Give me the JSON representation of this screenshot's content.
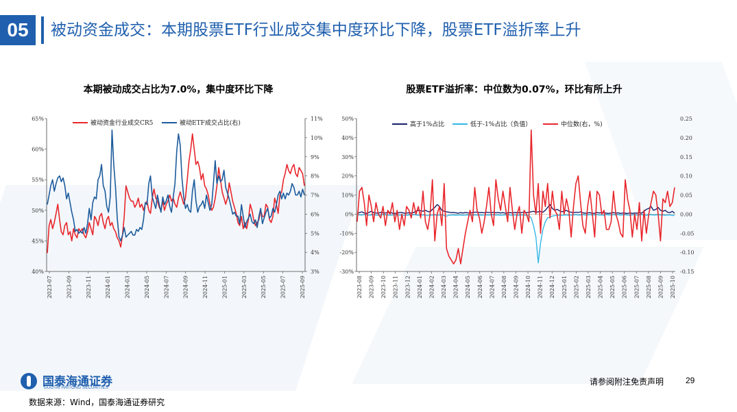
{
  "header": {
    "section_number": "05",
    "title": "被动资金成交：本期股票ETF行业成交集中度环比下降，股票ETF溢折率上升"
  },
  "colors": {
    "brand": "#1f5fae",
    "red": "#e8262b",
    "navy": "#15206b",
    "blue": "#1c5b9b",
    "cyan": "#33b7e6"
  },
  "chart1_title": "本期被动成交占比为7.0%，集中度环比下降",
  "chart2_title": "股票ETF溢折率：中位数为0.07%，环比有所上升",
  "chart_data": [
    {
      "type": "line",
      "title": "本期被动成交占比为7.0%，集中度环比下降",
      "x_ticks": [
        "2023-07",
        "2023-09",
        "2023-11",
        "2024-01",
        "2024-03",
        "2024-05",
        "2024-07",
        "2024-09",
        "2024-11",
        "2025-01",
        "2025-03",
        "2025-05",
        "2025-07",
        "2025-09"
      ],
      "ylim_left": [
        40,
        65
      ],
      "left_ticks": [
        "40%",
        "45%",
        "50%",
        "55%",
        "60%",
        "65%"
      ],
      "ylim_right": [
        3,
        11
      ],
      "right_ticks": [
        "3%",
        "4%",
        "5%",
        "6%",
        "7%",
        "8%",
        "9%",
        "10%",
        "11%"
      ],
      "series": [
        {
          "name": "被动资金行业成交CR5",
          "axis": "left",
          "color": "#e8262b",
          "values": [
            43.0,
            47.5,
            48.5,
            47.0,
            48.0,
            49.5,
            51.0,
            48.5,
            46.5,
            46.0,
            47.5,
            48.0,
            46.0,
            46.5,
            45.0,
            47.0,
            46.0,
            45.5,
            47.0,
            46.5,
            47.0,
            46.0,
            45.5,
            46.5,
            48.0,
            47.0,
            46.0,
            49.0,
            48.5,
            47.5,
            49.0,
            49.5,
            48.0,
            47.0,
            48.5,
            49.0,
            47.5,
            48.0,
            47.0,
            46.5,
            45.5,
            45.0,
            44.0,
            46.0,
            49.0,
            54.0,
            53.0,
            52.0,
            51.5,
            51.5,
            50.5,
            51.0,
            52.0,
            50.5,
            51.0,
            50.0,
            51.0,
            51.5,
            50.0,
            49.5,
            52.0,
            53.5,
            52.0,
            51.5,
            50.5,
            50.0,
            51.5,
            50.0,
            51.0,
            51.5,
            52.5,
            51.5,
            52.0,
            51.0,
            50.5,
            52.0,
            53.0,
            52.0,
            51.0,
            52.0,
            55.0,
            58.0,
            60.0,
            62.5,
            60.0,
            57.5,
            58.0,
            57.0,
            55.0,
            56.0,
            54.0,
            53.5,
            52.5,
            51.0,
            50.0,
            50.5,
            52.0,
            54.0,
            57.0,
            55.0,
            53.0,
            52.0,
            51.0,
            52.0,
            54.5,
            53.0,
            51.5,
            50.5,
            49.5,
            48.0,
            47.5,
            49.0,
            47.0,
            48.0,
            47.0,
            48.5,
            51.0,
            50.0,
            48.5,
            47.5,
            48.0,
            48.5,
            50.0,
            49.0,
            49.0,
            51.0,
            50.5,
            48.5,
            48.0,
            49.0,
            52.0,
            51.0,
            49.5,
            52.5,
            53.0,
            55.0,
            56.0,
            57.5,
            56.5,
            56.0,
            57.0,
            57.5,
            56.0,
            55.5,
            57.0,
            56.5,
            56.0,
            54.0
          ]
        },
        {
          "name": "被动ETF成交占比(右)",
          "axis": "right",
          "color": "#1c5b9b",
          "values": [
            6.5,
            7.0,
            7.5,
            7.8,
            7.2,
            7.6,
            7.9,
            8.0,
            7.7,
            7.9,
            7.5,
            6.8,
            7.1,
            6.6,
            6.1,
            5.7,
            5.1,
            5.2,
            5.0,
            5.1,
            5.0,
            5.3,
            5.0,
            5.5,
            6.3,
            5.7,
            6.6,
            6.9,
            6.8,
            7.8,
            8.0,
            8.6,
            7.5,
            7.2,
            6.4,
            6.1,
            6.9,
            10.4,
            8.6,
            7.4,
            5.8,
            4.8,
            4.6,
            4.9,
            5.3,
            4.8,
            4.9,
            5.0,
            5.1,
            4.9,
            4.9,
            5.2,
            5.1,
            5.3,
            5.2,
            5.7,
            6.6,
            6.5,
            7.6,
            8.0,
            6.9,
            6.6,
            6.3,
            7.0,
            6.5,
            6.1,
            6.9,
            6.5,
            6.7,
            7.0,
            6.4,
            6.1,
            6.9,
            7.6,
            9.3,
            10.2,
            9.6,
            7.9,
            6.9,
            6.3,
            6.5,
            6.2,
            6.1,
            7.2,
            7.8,
            6.7,
            6.1,
            6.4,
            6.5,
            6.7,
            6.3,
            7.0,
            6.6,
            6.2,
            6.5,
            7.6,
            8.8,
            7.6,
            8.0,
            7.7,
            7.8,
            8.3,
            7.4,
            7.1,
            6.8,
            6.4,
            6.0,
            6.1,
            5.9,
            5.9,
            5.5,
            6.5,
            5.9,
            5.3,
            5.6,
            5.8,
            6.0,
            5.6,
            5.5,
            5.7,
            5.3,
            5.9,
            6.3,
            5.5,
            5.8,
            6.1,
            6.3,
            5.8,
            5.9,
            6.3,
            6.1,
            6.5,
            7.0,
            7.2,
            6.8,
            7.1,
            6.8,
            7.1,
            7.0,
            7.2,
            7.6,
            7.4,
            7.0,
            7.0,
            7.2,
            6.9,
            7.3,
            7.0
          ]
        }
      ]
    },
    {
      "type": "line",
      "title": "股票ETF溢折率：中位数为0.07%，环比有所上升",
      "x_ticks": [
        "2023-08",
        "2023-09",
        "2023-10",
        "2023-11",
        "2023-12",
        "2024-01",
        "2024-02",
        "2024-03",
        "2024-04",
        "2024-05",
        "2024-06",
        "2024-07",
        "2024-08",
        "2024-09",
        "2024-10",
        "2024-11",
        "2024-12",
        "2025-01",
        "2025-02",
        "2025-03",
        "2025-04",
        "2025-05",
        "2025-06",
        "2025-07",
        "2025-08",
        "2025-09",
        "2025-10"
      ],
      "ylim_left": [
        -30,
        50
      ],
      "left_ticks": [
        "-30%",
        "-20%",
        "-10%",
        "0%",
        "10%",
        "20%",
        "30%",
        "40%",
        "50%"
      ],
      "ylim_right": [
        -0.15,
        0.25
      ],
      "right_ticks": [
        "-0.15",
        "-0.10",
        "-0.05",
        "0.00",
        "0.05",
        "0.10",
        "0.15",
        "0.20",
        "0.25"
      ],
      "series": [
        {
          "name": "高于1%占比",
          "axis": "left",
          "color": "#15206b",
          "values": [
            0.5,
            0.8,
            1.2,
            0.6,
            0.4,
            0.9,
            1.5,
            0.8,
            0.6,
            0.5,
            1.0,
            0.7,
            0.6,
            0.8,
            1.0,
            0.5,
            0.4,
            0.6,
            0.8,
            0.9,
            0.5,
            0.6,
            0.7,
            0.6,
            0.8,
            1.5,
            2.0,
            1.8,
            1.5,
            2.0,
            1.4,
            1.2,
            2.5,
            3.5,
            5.0,
            4.0,
            2.0,
            1.5,
            1.2,
            1.0,
            0.8,
            0.9,
            0.7,
            0.5,
            0.8,
            0.6,
            0.9,
            0.7,
            0.6,
            0.8,
            1.0,
            1.0,
            0.8,
            0.9,
            0.7,
            1.0,
            0.9,
            0.8,
            1.0,
            0.7,
            0.9,
            0.6,
            0.8,
            0.5,
            0.7,
            0.8,
            0.6,
            0.9,
            0.8,
            0.7,
            0.9,
            1.0,
            0.8,
            1.0,
            1.2,
            1.5,
            1.0,
            1.2,
            1.4,
            1.0,
            2.0,
            3.5,
            5.0,
            3.0,
            2.0,
            2.5,
            1.8,
            1.2,
            1.5,
            2.0,
            1.2,
            1.0,
            0.8,
            1.0,
            0.9,
            1.2,
            0.7,
            0.5,
            0.6,
            0.8,
            0.4,
            0.5,
            0.9,
            0.6,
            0.8,
            0.7,
            0.5,
            0.4,
            0.6,
            0.8,
            0.5,
            0.7,
            0.4,
            0.6,
            0.5,
            0.3,
            0.7,
            0.4,
            0.6,
            0.5,
            0.8,
            0.5,
            1.5,
            2.5,
            3.0,
            4.0,
            2.0,
            2.5,
            3.5,
            2.0,
            1.5,
            2.0,
            1.0,
            0.8,
            1.5,
            0.5
          ]
        },
        {
          "name": "低于-1%占比（负值）",
          "axis": "left",
          "color": "#33b7e6",
          "values": [
            -0.3,
            -0.4,
            -0.5,
            -0.2,
            -0.3,
            -0.6,
            -0.4,
            -0.3,
            -0.5,
            -0.6,
            -0.4,
            -0.3,
            -0.4,
            -0.5,
            -0.6,
            -0.5,
            -0.4,
            -0.3,
            -0.6,
            -0.5,
            -0.7,
            -0.6,
            -0.4,
            -0.5,
            -0.3,
            -0.4,
            -0.6,
            -0.5,
            -0.4,
            -0.7,
            -0.8,
            -0.6,
            -0.5,
            -0.4,
            -0.6,
            -0.5,
            -0.4,
            -0.8,
            -1.0,
            -0.6,
            -0.5,
            -0.4,
            -0.6,
            -0.5,
            -0.4,
            -0.6,
            -0.5,
            -0.4,
            -0.5,
            -0.6,
            -0.4,
            -0.5,
            -0.4,
            -0.6,
            -0.5,
            -0.4,
            -0.5,
            -0.4,
            -0.3,
            -0.5,
            -0.4,
            -0.6,
            -0.5,
            -0.4,
            -0.3,
            -0.5,
            -0.6,
            -0.4,
            -0.5,
            -0.6,
            -0.4,
            -0.5,
            -0.6,
            -0.8,
            -2.0,
            -6.0,
            -12.0,
            -25.5,
            -15.0,
            -8.0,
            -4.0,
            -2.0,
            -1.5,
            -1.0,
            -0.8,
            -0.6,
            -0.5,
            -0.7,
            -0.5,
            -0.4,
            -0.6,
            -0.5,
            -0.4,
            -0.3,
            -0.5,
            -0.4,
            -0.3,
            -0.5,
            -0.4,
            -0.3,
            -0.5,
            -0.4,
            -0.3,
            -0.5,
            -0.4,
            -0.6,
            -0.3,
            -0.4,
            -0.5,
            -0.3,
            -0.4,
            -0.3,
            -0.5,
            -0.4,
            -0.3,
            -0.5,
            -0.6,
            -0.4,
            -0.3,
            -0.5,
            -0.4,
            -0.3,
            -0.5,
            -0.6,
            -0.4,
            -0.3,
            -0.5,
            -0.4,
            -0.3,
            -0.5,
            -0.4,
            -0.6,
            -0.5,
            -0.4,
            -0.8,
            -0.5
          ]
        },
        {
          "name": "中位数(右，%)",
          "axis": "right",
          "color": "#e8262b",
          "values": [
            -0.02,
            0.06,
            0.07,
            0.03,
            -0.03,
            0.05,
            0.02,
            -0.02,
            0.03,
            0.0,
            -0.01,
            0.02,
            -0.03,
            0.01,
            0.0,
            0.03,
            -0.02,
            0.01,
            -0.04,
            0.0,
            -0.03,
            0.02,
            0.01,
            -0.01,
            0.03,
            0.0,
            0.02,
            -0.01,
            0.06,
            -0.02,
            -0.04,
            0.0,
            0.09,
            -0.07,
            0.0,
            0.02,
            -0.03,
            0.08,
            -0.09,
            -0.11,
            -0.12,
            -0.13,
            -0.12,
            -0.09,
            -0.13,
            -0.09,
            -0.05,
            -0.02,
            0.01,
            -0.02,
            0.07,
            0.01,
            -0.01,
            -0.05,
            -0.02,
            0.02,
            0.07,
            0.0,
            -0.03,
            0.09,
            0.04,
            0.01,
            0.06,
            0.02,
            -0.02,
            0.07,
            0.01,
            -0.04,
            0.0,
            0.02,
            -0.05,
            0.01,
            0.0,
            -0.02,
            0.22,
            0.05,
            0.0,
            0.08,
            -0.05,
            0.06,
            0.02,
            0.08,
            -0.01,
            0.06,
            0.01,
            0.0,
            -0.04,
            0.06,
            0.0,
            0.04,
            0.01,
            -0.06,
            0.02,
            0.08,
            0.1,
            0.03,
            -0.03,
            -0.05,
            0.02,
            0.06,
            0.0,
            -0.06,
            0.06,
            0.05,
            0.0,
            0.01,
            -0.04,
            -0.04,
            -0.02,
            0.06,
            0.0,
            -0.02,
            -0.05,
            -0.06,
            0.09,
            0.04,
            0.01,
            -0.06,
            0.0,
            -0.04,
            0.03,
            -0.07,
            0.01,
            -0.05,
            0.0,
            0.03,
            0.06,
            0.05,
            0.0,
            -0.07,
            0.04,
            0.03,
            0.06,
            0.02,
            0.03,
            0.07
          ]
        }
      ]
    }
  ],
  "footer": {
    "logo_cn": "国泰海通证券",
    "logo_en": "GUOTAI HAITONG SECURITIES",
    "source": "数据来源：Wind，国泰海通证券研究",
    "disclaimer": "请参阅附注免责声明",
    "page": "29"
  }
}
